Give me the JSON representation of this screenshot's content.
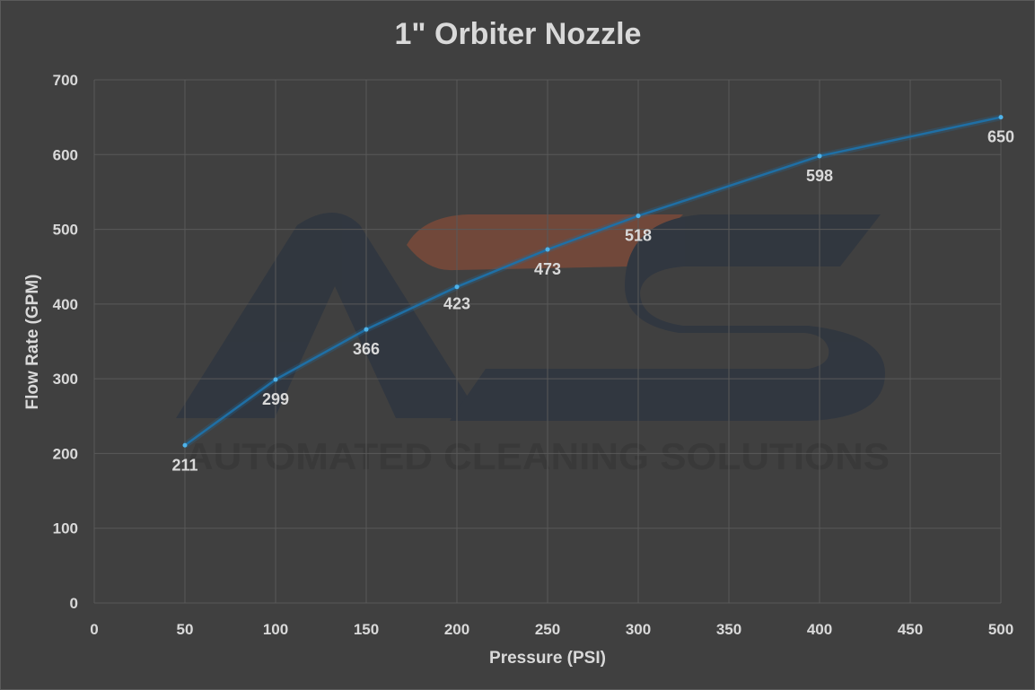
{
  "chart_data": {
    "type": "line",
    "title": "1\" Orbiter Nozzle",
    "xlabel": "Pressure (PSI)",
    "ylabel": "Flow Rate (GPM)",
    "xlim": [
      0,
      500
    ],
    "ylim": [
      0,
      700
    ],
    "x_ticks": [
      "0",
      "50",
      "100",
      "150",
      "200",
      "250",
      "300",
      "350",
      "400",
      "450",
      "500"
    ],
    "y_ticks": [
      "0",
      "100",
      "200",
      "300",
      "400",
      "500",
      "600",
      "700"
    ],
    "grid": true,
    "legend": "none",
    "x": [
      50,
      100,
      150,
      200,
      250,
      300,
      400,
      500
    ],
    "series": [
      {
        "values": [
          211,
          299,
          366,
          423,
          473,
          518,
          598,
          650
        ],
        "data_labels": [
          "211",
          "299",
          "366",
          "423",
          "473",
          "518",
          "598",
          "650"
        ]
      }
    ],
    "colors": {
      "background": "#404040",
      "line": "#1f6fa5",
      "point": "#4fb3ea",
      "grid": "#595959",
      "text": "#d9d9d9"
    }
  },
  "watermark": {
    "text": "AUTOMATED CLEANING SOLUTIONS",
    "logo": "ACS",
    "colors": {
      "dark": "#2f3640",
      "accent": "#7a4a3a"
    }
  }
}
